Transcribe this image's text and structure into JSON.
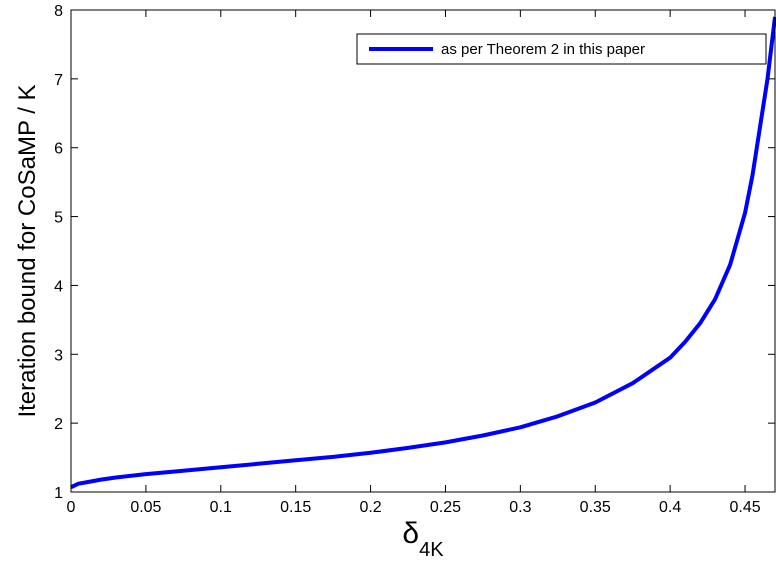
{
  "chart_data": {
    "type": "line",
    "title": "",
    "xlabel": "δ",
    "xlabel_subscript": "4K",
    "ylabel": "Iteration bound for CoSaMP / K",
    "xlim": [
      0,
      0.47
    ],
    "ylim": [
      1,
      8
    ],
    "xticks": [
      0,
      0.05,
      0.1,
      0.15,
      0.2,
      0.25,
      0.3,
      0.35,
      0.4,
      0.45
    ],
    "xtick_labels": [
      "0",
      "0.05",
      "0.1",
      "0.15",
      "0.2",
      "0.25",
      "0.3",
      "0.35",
      "0.4",
      "0.45"
    ],
    "yticks": [
      1,
      2,
      3,
      4,
      5,
      6,
      7,
      8
    ],
    "ytick_labels": [
      "1",
      "2",
      "3",
      "4",
      "5",
      "6",
      "7",
      "8"
    ],
    "grid": false,
    "legend_position": "top-right",
    "series": [
      {
        "name": "as per Theorem 2 in this paper",
        "color": "#0000ff",
        "x": [
          0,
          0.005,
          0.01,
          0.02,
          0.03,
          0.05,
          0.075,
          0.1,
          0.125,
          0.15,
          0.175,
          0.2,
          0.225,
          0.25,
          0.275,
          0.3,
          0.325,
          0.35,
          0.375,
          0.4,
          0.41,
          0.42,
          0.43,
          0.44,
          0.45,
          0.455,
          0.46,
          0.465,
          0.47
        ],
        "y": [
          1.07,
          1.12,
          1.14,
          1.18,
          1.21,
          1.26,
          1.31,
          1.36,
          1.41,
          1.46,
          1.51,
          1.57,
          1.64,
          1.72,
          1.82,
          1.94,
          2.1,
          2.3,
          2.58,
          2.95,
          3.18,
          3.45,
          3.8,
          4.3,
          5.05,
          5.6,
          6.3,
          7.0,
          7.9
        ]
      }
    ]
  }
}
